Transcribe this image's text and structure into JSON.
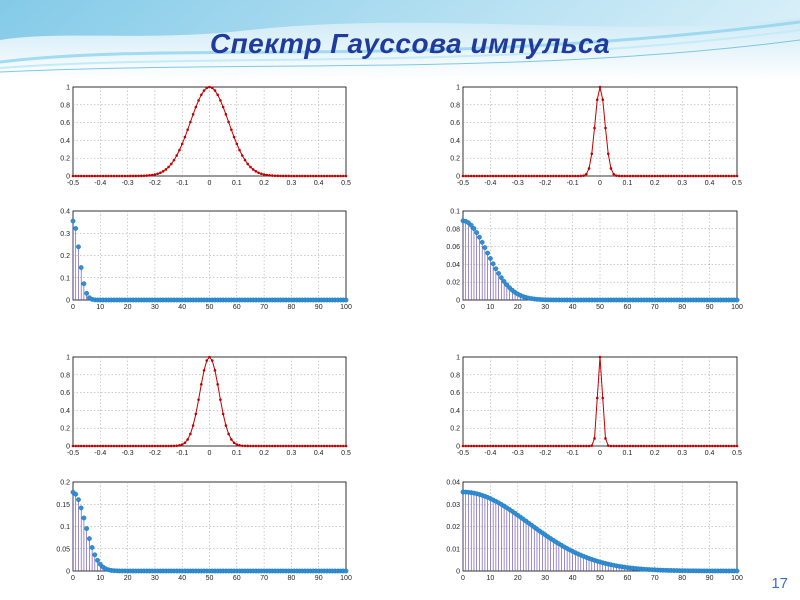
{
  "slide": {
    "title": "Спектр Гауссова импульса",
    "page_number": "17",
    "colors": {
      "title": "#1f3b9e",
      "signal": "#c00000",
      "spectrum": "#2e8fd6",
      "stem": "#5b3fa8"
    }
  },
  "chart_data": [
    {
      "type": "line",
      "panel": "row1-left",
      "style": "signal",
      "x_range": [
        -0.5,
        0.5
      ],
      "ylim": [
        0,
        1
      ],
      "xticks": [
        "-0.5",
        "-0.4",
        "-0.3",
        "-0.2",
        "-0.1",
        "0",
        "0.1",
        "0.2",
        "0.3",
        "0.4",
        "0.5"
      ],
      "yticks": [
        "0",
        "0.2",
        "0.4",
        "0.6",
        "0.8",
        "1"
      ],
      "series": [
        {
          "function": "gaussian",
          "amplitude": 1,
          "center": 0,
          "sigma": 0.07,
          "samples": 101
        }
      ],
      "grid": true,
      "title": "",
      "xlabel": "",
      "ylabel": ""
    },
    {
      "type": "line",
      "panel": "row1-right",
      "style": "signal",
      "x_range": [
        -0.5,
        0.5
      ],
      "ylim": [
        0,
        1
      ],
      "xticks": [
        "-0.5",
        "-0.4",
        "-0.3",
        "-0.2",
        "-0.1",
        "0",
        "0.1",
        "0.2",
        "0.3",
        "0.4",
        "0.5"
      ],
      "yticks": [
        "0",
        "0.2",
        "0.4",
        "0.6",
        "0.8",
        "1"
      ],
      "series": [
        {
          "function": "gaussian",
          "amplitude": 1,
          "center": 0,
          "sigma": 0.018,
          "samples": 101
        }
      ],
      "grid": true,
      "title": "",
      "xlabel": "",
      "ylabel": ""
    },
    {
      "type": "stem",
      "panel": "row2-left",
      "style": "spectrum",
      "x_range": [
        0,
        100
      ],
      "ylim": [
        0,
        0.4
      ],
      "xticks": [
        "0",
        "10",
        "20",
        "30",
        "40",
        "50",
        "60",
        "70",
        "80",
        "90",
        "100"
      ],
      "yticks": [
        "0",
        "0.1",
        "0.2",
        "0.3",
        "0.4"
      ],
      "series": [
        {
          "function": "half-gaussian",
          "amplitude": 0.355,
          "center": 0,
          "sigma": 2.25,
          "samples": 101
        }
      ],
      "grid": true,
      "title": "",
      "xlabel": "",
      "ylabel": ""
    },
    {
      "type": "stem",
      "panel": "row2-right",
      "style": "spectrum",
      "x_range": [
        0,
        100
      ],
      "ylim": [
        0,
        0.1
      ],
      "xticks": [
        "0",
        "10",
        "20",
        "30",
        "40",
        "50",
        "60",
        "70",
        "80",
        "90",
        "100"
      ],
      "yticks": [
        "0",
        "0.02",
        "0.04",
        "0.06",
        "0.08",
        "0.1"
      ],
      "series": [
        {
          "function": "half-gaussian",
          "amplitude": 0.089,
          "center": 0,
          "sigma": 8.8,
          "samples": 101
        }
      ],
      "grid": true,
      "title": "",
      "xlabel": "",
      "ylabel": ""
    },
    {
      "type": "line",
      "panel": "row3-left",
      "style": "signal",
      "x_range": [
        -0.5,
        0.5
      ],
      "ylim": [
        0,
        1
      ],
      "xticks": [
        "-0.5",
        "-0.4",
        "-0.3",
        "-0.2",
        "-0.1",
        "0",
        "0.1",
        "0.2",
        "0.3",
        "0.4",
        "0.5"
      ],
      "yticks": [
        "0",
        "0.2",
        "0.4",
        "0.6",
        "0.8",
        "1"
      ],
      "series": [
        {
          "function": "gaussian",
          "amplitude": 1,
          "center": 0,
          "sigma": 0.035,
          "samples": 101
        }
      ],
      "grid": true,
      "title": "",
      "xlabel": "",
      "ylabel": ""
    },
    {
      "type": "line",
      "panel": "row3-right",
      "style": "signal",
      "x_range": [
        -0.5,
        0.5
      ],
      "ylim": [
        0,
        1
      ],
      "xticks": [
        "-0.5",
        "-0.4",
        "-0.3",
        "-0.2",
        "-0.1",
        "0",
        "0.1",
        "0.2",
        "0.3",
        "0.4",
        "0.5"
      ],
      "yticks": [
        "0",
        "0.2",
        "0.4",
        "0.6",
        "0.8",
        "1"
      ],
      "series": [
        {
          "function": "gaussian",
          "amplitude": 1,
          "center": 0,
          "sigma": 0.009,
          "samples": 101
        }
      ],
      "grid": true,
      "title": "",
      "xlabel": "",
      "ylabel": ""
    },
    {
      "type": "stem",
      "panel": "row4-left",
      "style": "spectrum",
      "x_range": [
        0,
        100
      ],
      "ylim": [
        0,
        0.2
      ],
      "xticks": [
        "0",
        "10",
        "20",
        "30",
        "40",
        "50",
        "60",
        "70",
        "80",
        "90",
        "100"
      ],
      "yticks": [
        "0",
        "0.05",
        "0.1",
        "0.15",
        "0.2"
      ],
      "series": [
        {
          "function": "half-gaussian",
          "amplitude": 0.177,
          "center": 0,
          "sigma": 4.5,
          "samples": 101
        }
      ],
      "grid": true,
      "title": "",
      "xlabel": "",
      "ylabel": ""
    },
    {
      "type": "stem",
      "panel": "row4-right",
      "style": "spectrum",
      "x_range": [
        0,
        100
      ],
      "ylim": [
        0,
        0.04
      ],
      "xticks": [
        "0",
        "10",
        "20",
        "30",
        "40",
        "50",
        "60",
        "70",
        "80",
        "90",
        "100"
      ],
      "yticks": [
        "0",
        "0.01",
        "0.02",
        "0.03",
        "0.04"
      ],
      "series": [
        {
          "function": "half-gaussian",
          "amplitude": 0.0355,
          "center": 0,
          "sigma": 24,
          "samples": 101
        }
      ],
      "grid": true,
      "title": "",
      "xlabel": "",
      "ylabel": ""
    }
  ]
}
